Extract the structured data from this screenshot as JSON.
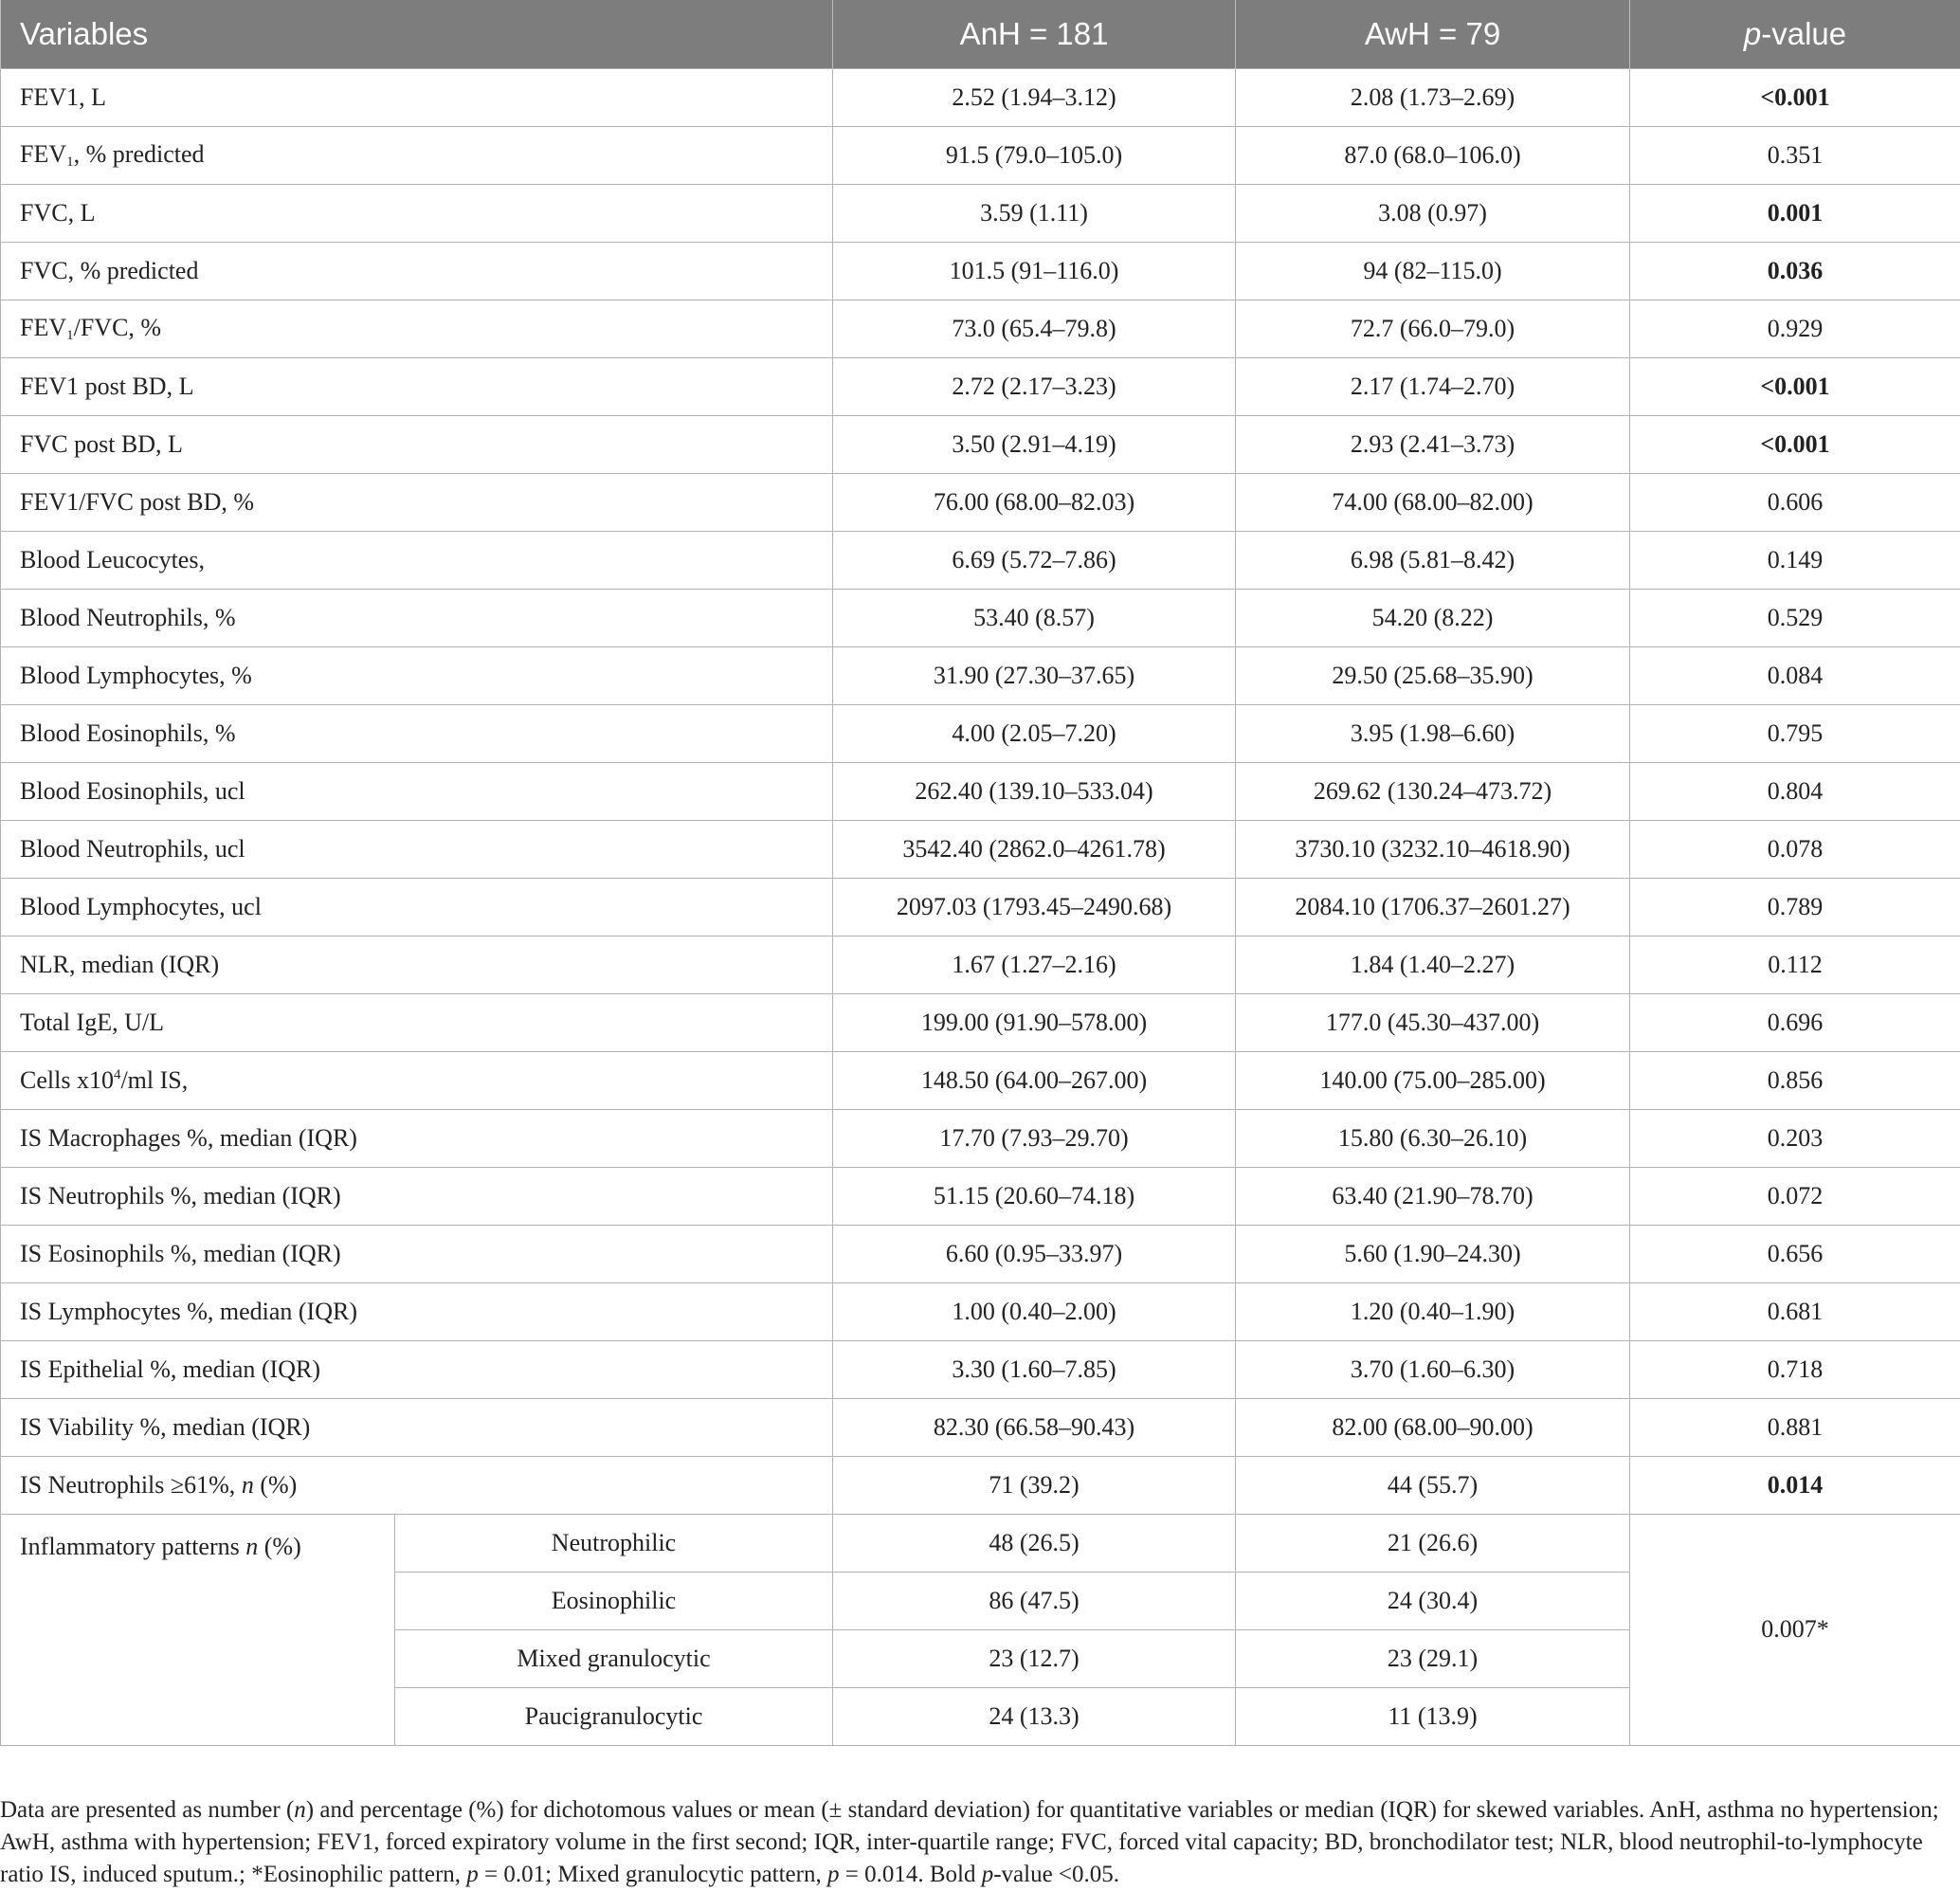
{
  "table": {
    "headers": {
      "variables": "Variables",
      "anh": "AnH = 181",
      "awh": "AwH = 79",
      "p_italic": "p",
      "p_rest": "-value"
    },
    "rows": [
      {
        "label": "FEV1, L",
        "anh": "2.52 (1.94–3.12)",
        "awh": "2.08 (1.73–2.69)",
        "p": "<0.001",
        "bold": true
      },
      {
        "label_parts": [
          "FEV",
          "1",
          ", % predicted"
        ],
        "anh": "91.5 (79.0–105.0)",
        "awh": "87.0 (68.0–106.0)",
        "p": "0.351",
        "bold": false
      },
      {
        "label": "FVC, L",
        "anh": "3.59 (1.11)",
        "awh": "3.08 (0.97)",
        "p": "0.001",
        "bold": true
      },
      {
        "label": "FVC, % predicted",
        "anh": "101.5 (91–116.0)",
        "awh": "94 (82–115.0)",
        "p": "0.036",
        "bold": true
      },
      {
        "label_parts": [
          "FEV",
          "1",
          "/FVC, %"
        ],
        "anh": "73.0 (65.4–79.8)",
        "awh": "72.7 (66.0–79.0)",
        "p": "0.929",
        "bold": false
      },
      {
        "label": "FEV1 post BD, L",
        "anh": "2.72 (2.17–3.23)",
        "awh": "2.17 (1.74–2.70)",
        "p": "<0.001",
        "bold": true
      },
      {
        "label": "FVC post BD, L",
        "anh": "3.50 (2.91–4.19)",
        "awh": "2.93 (2.41–3.73)",
        "p": "<0.001",
        "bold": true
      },
      {
        "label": "FEV1/FVC post BD, %",
        "anh": "76.00 (68.00–82.03)",
        "awh": "74.00 (68.00–82.00)",
        "p": "0.606",
        "bold": false
      },
      {
        "label": "Blood Leucocytes,",
        "anh": "6.69 (5.72–7.86)",
        "awh": "6.98 (5.81–8.42)",
        "p": "0.149",
        "bold": false
      },
      {
        "label": "Blood Neutrophils, %",
        "anh": "53.40 (8.57)",
        "awh": "54.20 (8.22)",
        "p": "0.529",
        "bold": false
      },
      {
        "label": "Blood Lymphocytes, %",
        "anh": "31.90 (27.30–37.65)",
        "awh": "29.50 (25.68–35.90)",
        "p": "0.084",
        "bold": false
      },
      {
        "label": "Blood Eosinophils, %",
        "anh": "4.00 (2.05–7.20)",
        "awh": "3.95 (1.98–6.60)",
        "p": "0.795",
        "bold": false
      },
      {
        "label": "Blood Eosinophils, ucl",
        "anh": "262.40 (139.10–533.04)",
        "awh": "269.62 (130.24–473.72)",
        "p": "0.804",
        "bold": false
      },
      {
        "label": "Blood Neutrophils, ucl",
        "anh": "3542.40 (2862.0–4261.78)",
        "awh": "3730.10 (3232.10–4618.90)",
        "p": "0.078",
        "bold": false
      },
      {
        "label": "Blood Lymphocytes, ucl",
        "anh": "2097.03 (1793.45–2490.68)",
        "awh": "2084.10 (1706.37–2601.27)",
        "p": "0.789",
        "bold": false
      },
      {
        "label": "NLR, median (IQR)",
        "anh": "1.67 (1.27–2.16)",
        "awh": "1.84 (1.40–2.27)",
        "p": "0.112",
        "bold": false
      },
      {
        "label": "Total IgE, U/L",
        "anh": "199.00 (91.90–578.00)",
        "awh": "177.0 (45.30–437.00)",
        "p": "0.696",
        "bold": false
      },
      {
        "label_parts": [
          "Cells x10",
          "4",
          "/ml IS,"
        ],
        "anh": "148.50 (64.00–267.00)",
        "awh": "140.00 (75.00–285.00)",
        "p": "0.856",
        "bold": false
      },
      {
        "label": "IS Macrophages %, median (IQR)",
        "anh": "17.70 (7.93–29.70)",
        "awh": "15.80 (6.30–26.10)",
        "p": "0.203",
        "bold": false
      },
      {
        "label": "IS Neutrophils %, median (IQR)",
        "anh": "51.15 (20.60–74.18)",
        "awh": "63.40 (21.90–78.70)",
        "p": "0.072",
        "bold": false
      },
      {
        "label": "IS Eosinophils %, median (IQR)",
        "anh": "6.60 (0.95–33.97)",
        "awh": "5.60 (1.90–24.30)",
        "p": "0.656",
        "bold": false
      },
      {
        "label": "IS Lymphocytes %, median (IQR)",
        "anh": "1.00 (0.40–2.00)",
        "awh": "1.20 (0.40–1.90)",
        "p": "0.681",
        "bold": false
      },
      {
        "label": "IS Epithelial %, median (IQR)",
        "anh": "3.30 (1.60–7.85)",
        "awh": "3.70 (1.60–6.30)",
        "p": "0.718",
        "bold": false
      },
      {
        "label": "IS Viability %, median (IQR)",
        "anh": "82.30 (66.58–90.43)",
        "awh": "82.00 (68.00–90.00)",
        "p": "0.881",
        "bold": false
      },
      {
        "label_parts": [
          "IS Neutrophils ≥61%, ",
          "n",
          " (%)"
        ],
        "anh": "71 (39.2)",
        "awh": "44 (55.7)",
        "p": "0.014",
        "bold": true
      }
    ],
    "inflammatory": {
      "label_main": "Inflammatory patterns ",
      "label_n": "n",
      "label_tail": " (%)",
      "p": "0.007*",
      "patterns": [
        {
          "name": "Neutrophilic",
          "anh": "48 (26.5)",
          "awh": "21 (26.6)"
        },
        {
          "name": "Eosinophilic",
          "anh": "86 (47.5)",
          "awh": "24 (30.4)"
        },
        {
          "name": "Mixed granulocytic",
          "anh": "23 (12.7)",
          "awh": "23 (29.1)"
        },
        {
          "name": "Paucigranulocytic",
          "anh": "24 (13.3)",
          "awh": "11 (13.9)"
        }
      ]
    }
  },
  "footnote": {
    "t1": "Data are presented as number (",
    "n1": "n",
    "t2": ") and percentage (%) for dichotomous values or mean (± standard deviation) for quantitative variables or median (IQR) for skewed variables. AnH, asthma no hypertension; AwH, asthma with hypertension; FEV1, forced expiratory volume in the first second; IQR, inter-quartile range; FVC, forced vital capacity; BD, bronchodilator test; NLR, blood neutrophil-to-lymphocyte ratio IS, induced sputum.; *Eosinophilic pattern, ",
    "p1": "p",
    "t3": " = 0.01; Mixed granulocytic pattern, ",
    "p2": "p",
    "t4": " = 0.014. Bold ",
    "p3": "p",
    "t5": "-value <0.05."
  }
}
